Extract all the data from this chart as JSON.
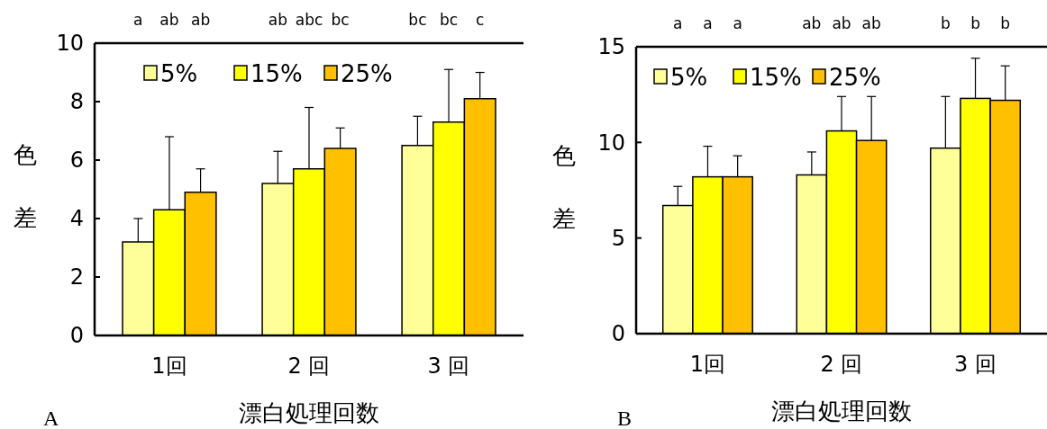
{
  "chart_data": [
    {
      "type": "bar",
      "title": "A",
      "xlabel": "漂白処理回数",
      "ylabel": "色差",
      "categories": [
        "1回",
        "2 回",
        "3 回"
      ],
      "ylim": [
        0,
        10
      ],
      "yticks": [
        0,
        2,
        4,
        6,
        8,
        10
      ],
      "legend": "top left",
      "grid": false,
      "series": [
        {
          "name": "5%",
          "color": "#ffff99",
          "values": [
            3.2,
            5.2,
            6.5
          ],
          "errors": [
            [
              3.2,
              4.0
            ],
            [
              5.2,
              6.3
            ],
            [
              6.5,
              7.5
            ]
          ]
        },
        {
          "name": "15%",
          "color": "#ffff00",
          "values": [
            4.3,
            5.7,
            7.3
          ],
          "errors": [
            [
              4.3,
              6.8
            ],
            [
              5.7,
              7.8
            ],
            [
              7.3,
              9.1
            ]
          ]
        },
        {
          "name": "25%",
          "color": "#ffc000",
          "values": [
            4.9,
            6.4,
            8.1
          ],
          "errors": [
            [
              4.9,
              5.7
            ],
            [
              6.4,
              7.1
            ],
            [
              8.1,
              9.0
            ]
          ]
        }
      ],
      "annotations": [
        "a",
        "ab",
        "ab",
        "ab",
        "abc",
        "bc",
        "bc",
        "bc",
        "c"
      ]
    },
    {
      "type": "bar",
      "title": "B",
      "xlabel": "漂白処理回数",
      "ylabel": "色差",
      "categories": [
        "1回",
        "2 回",
        "3 回"
      ],
      "ylim": [
        0,
        15
      ],
      "yticks": [
        0,
        5,
        10,
        15
      ],
      "legend": "top left",
      "grid": false,
      "series": [
        {
          "name": "5%",
          "color": "#ffff99",
          "values": [
            6.7,
            8.3,
            9.7
          ],
          "errors": [
            [
              6.7,
              7.7
            ],
            [
              8.3,
              9.5
            ],
            [
              9.7,
              12.4
            ]
          ]
        },
        {
          "name": "15%",
          "color": "#ffff00",
          "values": [
            8.2,
            10.6,
            12.3
          ],
          "errors": [
            [
              8.2,
              9.8
            ],
            [
              10.6,
              12.4
            ],
            [
              12.3,
              14.4
            ]
          ]
        },
        {
          "name": "25%",
          "color": "#ffc000",
          "values": [
            8.2,
            10.1,
            12.2
          ],
          "errors": [
            [
              8.2,
              9.3
            ],
            [
              10.1,
              12.4
            ],
            [
              12.2,
              14.0
            ]
          ]
        }
      ],
      "annotations": [
        "a",
        "a",
        "a",
        "ab",
        "ab",
        "ab",
        "b",
        "b",
        "b"
      ]
    }
  ]
}
